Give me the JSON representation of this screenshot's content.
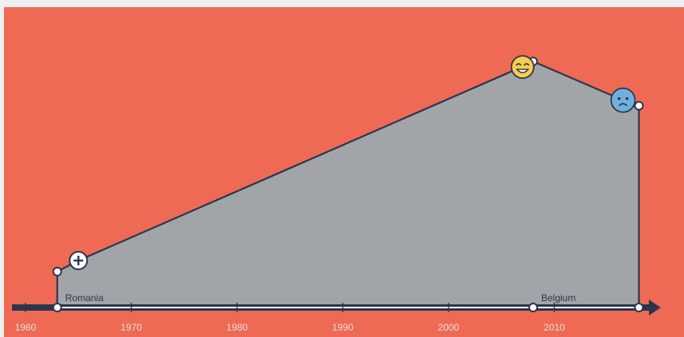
{
  "chart_data": {
    "type": "area",
    "x_axis": {
      "range": [
        1958,
        2020
      ],
      "ticks": [
        1960,
        1970,
        1980,
        1990,
        2000,
        2010
      ],
      "tick_labels": [
        "1960",
        "1970",
        "1980",
        "1990",
        "2000",
        "2010"
      ],
      "arrow": true
    },
    "y_axis": {
      "range": [
        0,
        100
      ],
      "visible": false
    },
    "series": [
      {
        "points": [
          {
            "x": 1963.0,
            "y": 13
          },
          {
            "x": 1965.0,
            "y": 17
          },
          {
            "x": 2007.5,
            "y": 88
          },
          {
            "x": 2008.0,
            "y": 89
          },
          {
            "x": 2016.5,
            "y": 75
          },
          {
            "x": 2018.0,
            "y": 73
          }
        ],
        "closed_to_axis_from": 1963.0,
        "closed_to_axis_to": 2018.0
      }
    ],
    "axis_markers": [
      {
        "x": 1963.0,
        "label": "Romania"
      },
      {
        "x": 2008.0,
        "label": "Belgium"
      },
      {
        "x": 2018.0,
        "label": ""
      }
    ],
    "point_markers": [
      {
        "x": 1963.0,
        "y": 13,
        "kind": "dot"
      },
      {
        "x": 2008.0,
        "y": 89,
        "kind": "dot"
      },
      {
        "x": 2018.0,
        "y": 73,
        "kind": "dot"
      }
    ],
    "icons": [
      {
        "x": 1965.0,
        "y": 17,
        "name": "plus-circle-icon"
      },
      {
        "x": 2007.0,
        "y": 87,
        "name": "happy-face-icon"
      },
      {
        "x": 2016.5,
        "y": 75,
        "name": "sad-face-icon"
      }
    ],
    "grid": false,
    "colors": {
      "background": "#ee6a55",
      "area_fill": "#a2a5a7",
      "line": "#2b3550",
      "axis": "#2b3550",
      "happy_face": "#f5cd4f",
      "sad_face": "#6fb0dc"
    }
  }
}
